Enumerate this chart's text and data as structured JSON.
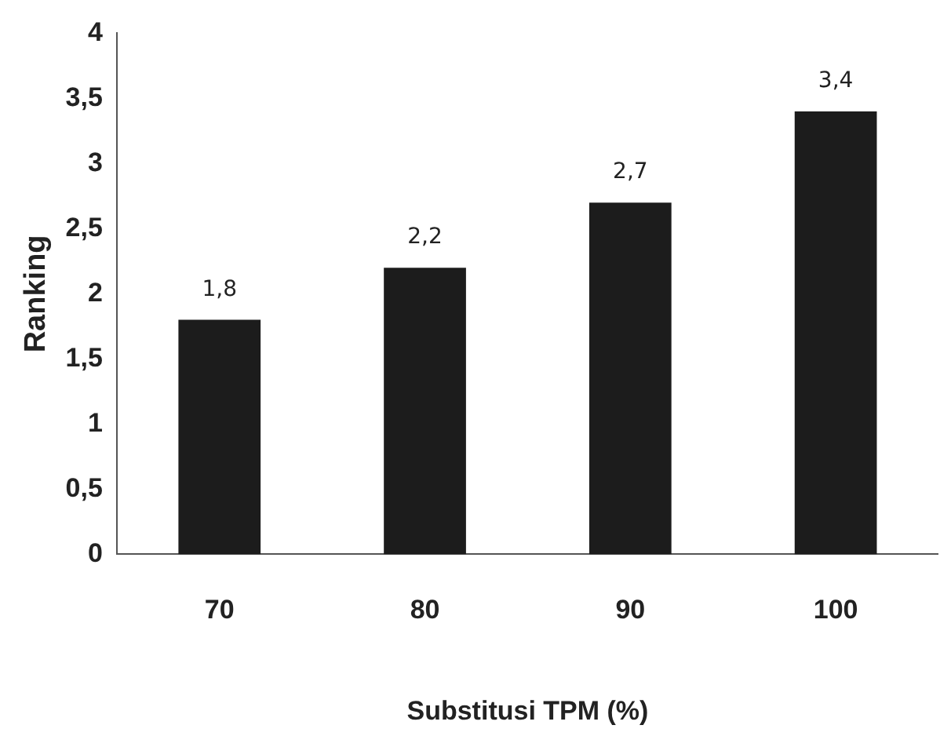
{
  "chart_data": {
    "type": "bar",
    "xlabel": "Substitusi TPM (%)",
    "ylabel": "Ranking",
    "categories": [
      "70",
      "80",
      "90",
      "100"
    ],
    "values": [
      1.8,
      2.2,
      2.7,
      3.4
    ],
    "color": "#1c1c1c",
    "value_labels": [
      "1,8",
      "2,2",
      "2,7",
      "3,4"
    ],
    "ylim": [
      0,
      4
    ],
    "yticks": [
      0,
      {
        "value": 0.5,
        "label": "0,5"
      },
      1,
      {
        "value": 1.5,
        "label": "1,5"
      },
      2,
      {
        "value": 2.5,
        "label": "2,5"
      },
      3,
      {
        "value": 3.5,
        "label": "3,5"
      },
      4
    ],
    "grid": false,
    "legend": false
  }
}
